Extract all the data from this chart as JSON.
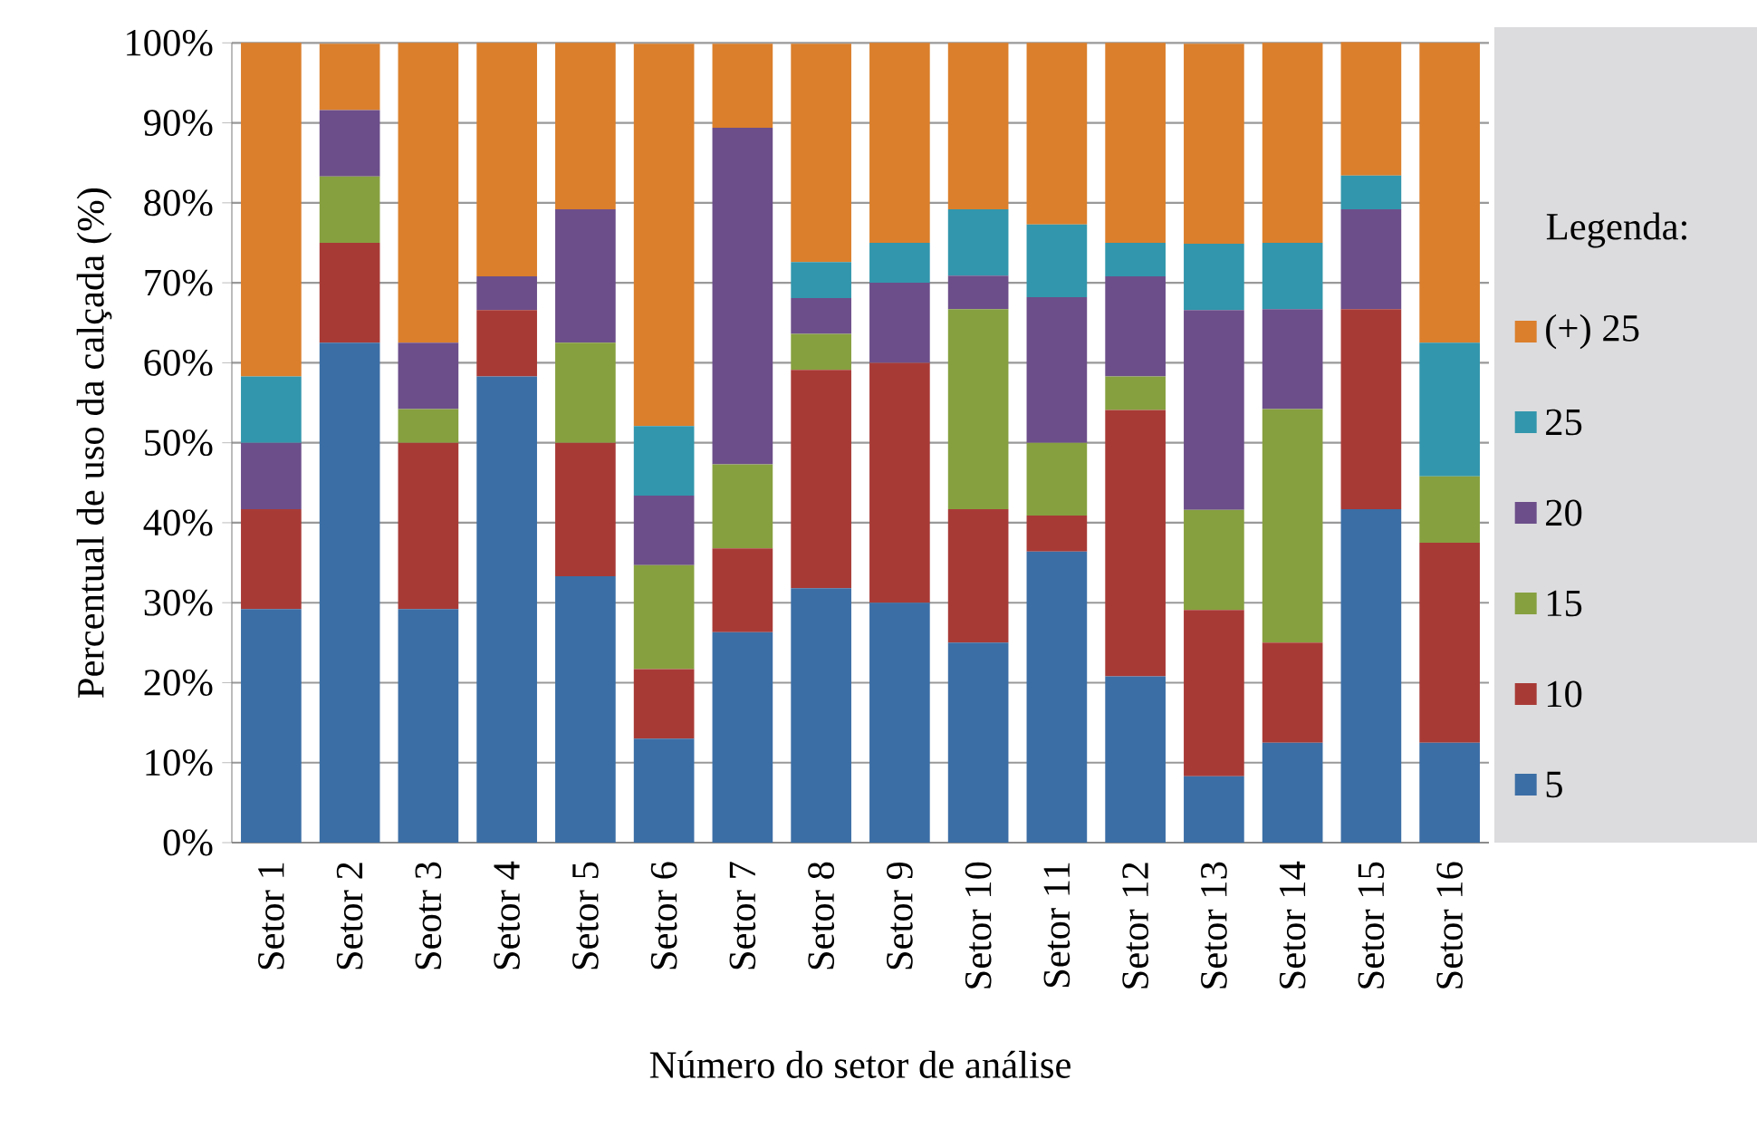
{
  "chart_data": {
    "type": "bar",
    "stacked": true,
    "xlabel": "Número do setor de análise",
    "ylabel": "Percentual de uso da calçada (%)",
    "legend_title": "Legenda:",
    "legend": "right",
    "grid": "y",
    "categories": [
      "Setor 1",
      "Setor 2",
      "Seotr 3",
      "Setor 4",
      "Setor 5",
      "Setor 6",
      "Setor 7",
      "Setor 8",
      "Setor 9",
      "Setor 10",
      "Setor 11",
      "Setor 12",
      "Setor 13",
      "Setor 14",
      "Setor 15",
      "Setor 16"
    ],
    "ylim": [
      0,
      100
    ],
    "yticks": [
      {
        "value": 0,
        "label": "0%"
      },
      {
        "value": 10,
        "label": "10%"
      },
      {
        "value": 20,
        "label": "20%"
      },
      {
        "value": 30,
        "label": "30%"
      },
      {
        "value": 40,
        "label": "40%"
      },
      {
        "value": 50,
        "label": "50%"
      },
      {
        "value": 60,
        "label": "60%"
      },
      {
        "value": 70,
        "label": "70%"
      },
      {
        "value": 80,
        "label": "80%"
      },
      {
        "value": 90,
        "label": "90%"
      },
      {
        "value": 100,
        "label": "100%"
      }
    ],
    "series": [
      {
        "name": "5",
        "color": "#3b6ea5",
        "values": [
          29.2,
          62.5,
          29.2,
          58.3,
          33.3,
          13.0,
          26.3,
          31.8,
          30.0,
          25.0,
          36.4,
          20.8,
          8.3,
          12.5,
          41.7,
          12.5
        ]
      },
      {
        "name": "10",
        "color": "#a83a36",
        "values": [
          12.5,
          12.5,
          20.8,
          8.3,
          16.7,
          8.7,
          10.5,
          27.3,
          30.0,
          16.7,
          4.5,
          33.3,
          20.8,
          12.5,
          25.0,
          25.0
        ]
      },
      {
        "name": "15",
        "color": "#86a03f",
        "values": [
          0,
          8.3,
          4.2,
          0,
          12.5,
          13.0,
          10.5,
          4.5,
          0,
          25.0,
          9.1,
          4.2,
          12.5,
          29.2,
          0,
          8.3
        ]
      },
      {
        "name": "20",
        "color": "#6c4e8a",
        "values": [
          8.3,
          8.3,
          8.3,
          4.2,
          16.7,
          8.7,
          42.1,
          4.5,
          10.0,
          4.2,
          18.2,
          12.5,
          25.0,
          12.5,
          12.5,
          0
        ]
      },
      {
        "name": "25",
        "color": "#3296ac",
        "values": [
          8.3,
          0,
          0,
          0,
          0,
          8.7,
          0,
          4.5,
          5.0,
          8.3,
          9.1,
          4.2,
          8.3,
          8.3,
          4.2,
          16.7
        ]
      },
      {
        "name": "(+) 25",
        "color": "#db7f2c",
        "values": [
          41.7,
          8.3,
          37.5,
          29.2,
          20.8,
          47.8,
          10.5,
          27.3,
          25.0,
          20.8,
          22.7,
          25.0,
          25.0,
          25.0,
          16.7,
          37.5
        ]
      }
    ]
  }
}
